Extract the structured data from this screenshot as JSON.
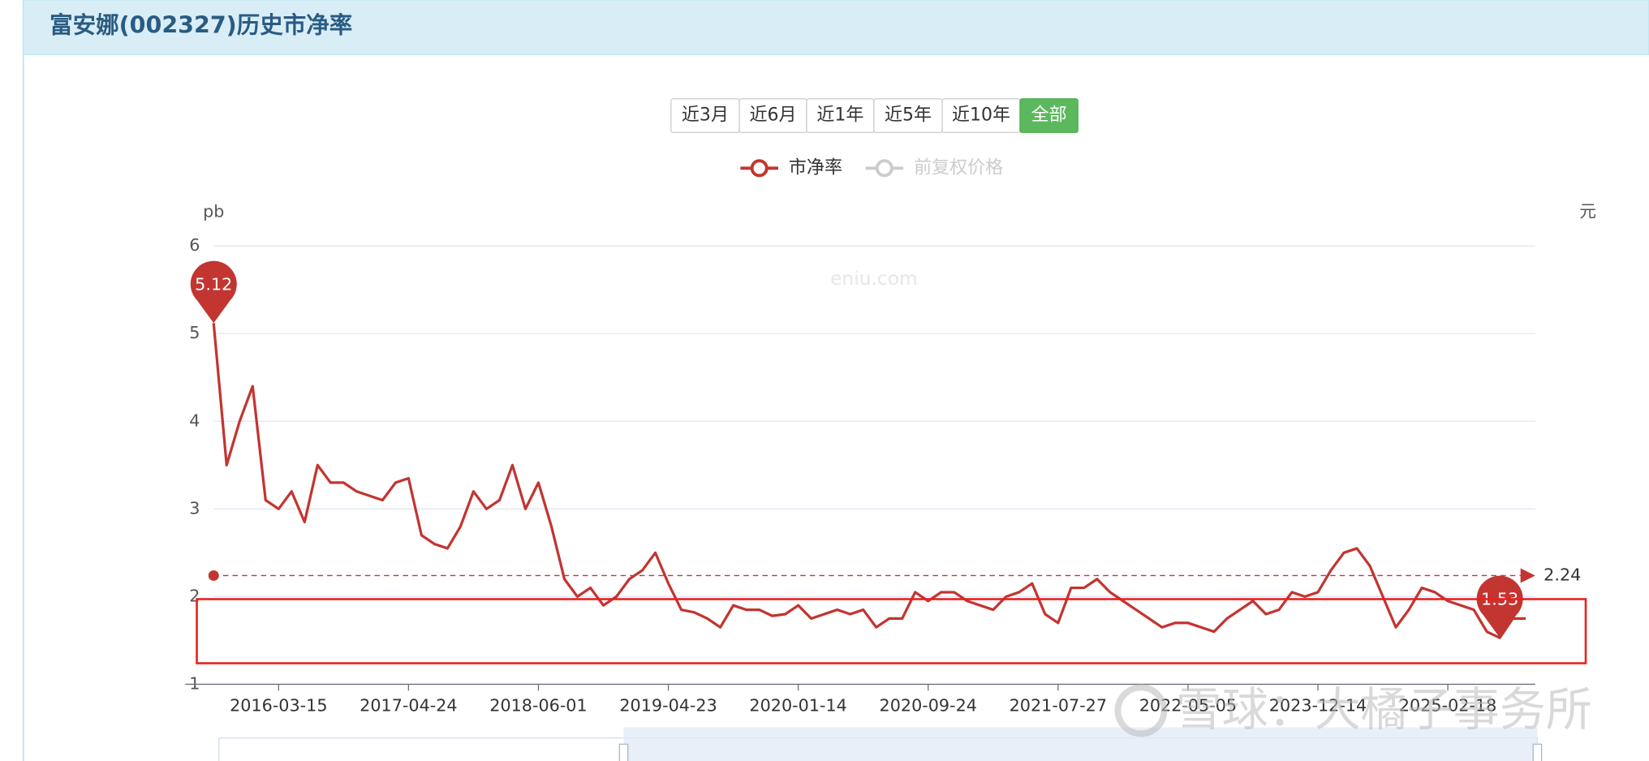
{
  "header": {
    "title": "富安娜(002327)历史市净率"
  },
  "buttons": [
    {
      "label": "近3月"
    },
    {
      "label": "近6月"
    },
    {
      "label": "近1年"
    },
    {
      "label": "近5年"
    },
    {
      "label": "近10年"
    },
    {
      "label": "全部",
      "active": true
    }
  ],
  "chart_data": {
    "type": "line",
    "y_axis_label": "pb",
    "y2_axis_label": "元",
    "watermark": "eniu.com",
    "overlay_watermark": "雪球：大橘子事务所",
    "categories": [
      null,
      null,
      null,
      null,
      null,
      "2016-03-15",
      null,
      null,
      null,
      null,
      null,
      null,
      null,
      null,
      null,
      "2017-04-24",
      null,
      null,
      null,
      null,
      null,
      null,
      null,
      null,
      null,
      "2018-06-01",
      null,
      null,
      null,
      null,
      null,
      null,
      null,
      null,
      null,
      "2019-04-23",
      null,
      null,
      null,
      null,
      null,
      null,
      null,
      null,
      null,
      "2020-01-14",
      null,
      null,
      null,
      null,
      null,
      null,
      null,
      null,
      null,
      "2020-09-24",
      null,
      null,
      null,
      null,
      null,
      null,
      null,
      null,
      null,
      "2021-07-27",
      null,
      null,
      null,
      null,
      null,
      null,
      null,
      null,
      null,
      "2022-05-05",
      null,
      null,
      null,
      null,
      null,
      null,
      null,
      null,
      null,
      "2023-12-14",
      null,
      null,
      null,
      null,
      null,
      null,
      null,
      null,
      null,
      "2025-02-18",
      null,
      null,
      null,
      null,
      null,
      null
    ],
    "series": [
      {
        "name": "市净率",
        "color": "#c23531",
        "values": [
          5.12,
          3.5,
          4.0,
          4.4,
          3.1,
          3.0,
          3.2,
          2.85,
          3.5,
          3.3,
          3.3,
          3.2,
          3.15,
          3.1,
          3.3,
          3.35,
          2.7,
          2.6,
          2.55,
          2.8,
          3.2,
          3.0,
          3.1,
          3.5,
          3.0,
          3.3,
          2.8,
          2.2,
          2.0,
          2.1,
          1.9,
          2.0,
          2.2,
          2.3,
          2.5,
          2.15,
          1.85,
          1.82,
          1.75,
          1.65,
          1.9,
          1.85,
          1.85,
          1.78,
          1.8,
          1.9,
          1.75,
          1.8,
          1.85,
          1.8,
          1.85,
          1.65,
          1.75,
          1.75,
          2.05,
          1.95,
          2.05,
          2.05,
          1.95,
          1.9,
          1.85,
          2.0,
          2.05,
          2.15,
          1.8,
          1.7,
          2.1,
          2.1,
          2.2,
          2.05,
          1.95,
          1.85,
          1.75,
          1.65,
          1.7,
          1.7,
          1.65,
          1.6,
          1.75,
          1.85,
          1.95,
          1.8,
          1.85,
          2.05,
          2.0,
          2.05,
          2.3,
          2.5,
          2.55,
          2.35,
          2.0,
          1.65,
          1.85,
          2.1,
          2.05,
          1.95,
          1.9,
          1.85,
          1.6,
          1.53,
          1.75,
          1.75
        ]
      }
    ],
    "hidden_series": [
      {
        "name": "前复权价格",
        "color": "#cccccc"
      }
    ],
    "average": 2.24,
    "ylim": [
      1,
      6
    ],
    "yticks": [
      1,
      2,
      3,
      4,
      5,
      6
    ],
    "grid": true
  }
}
